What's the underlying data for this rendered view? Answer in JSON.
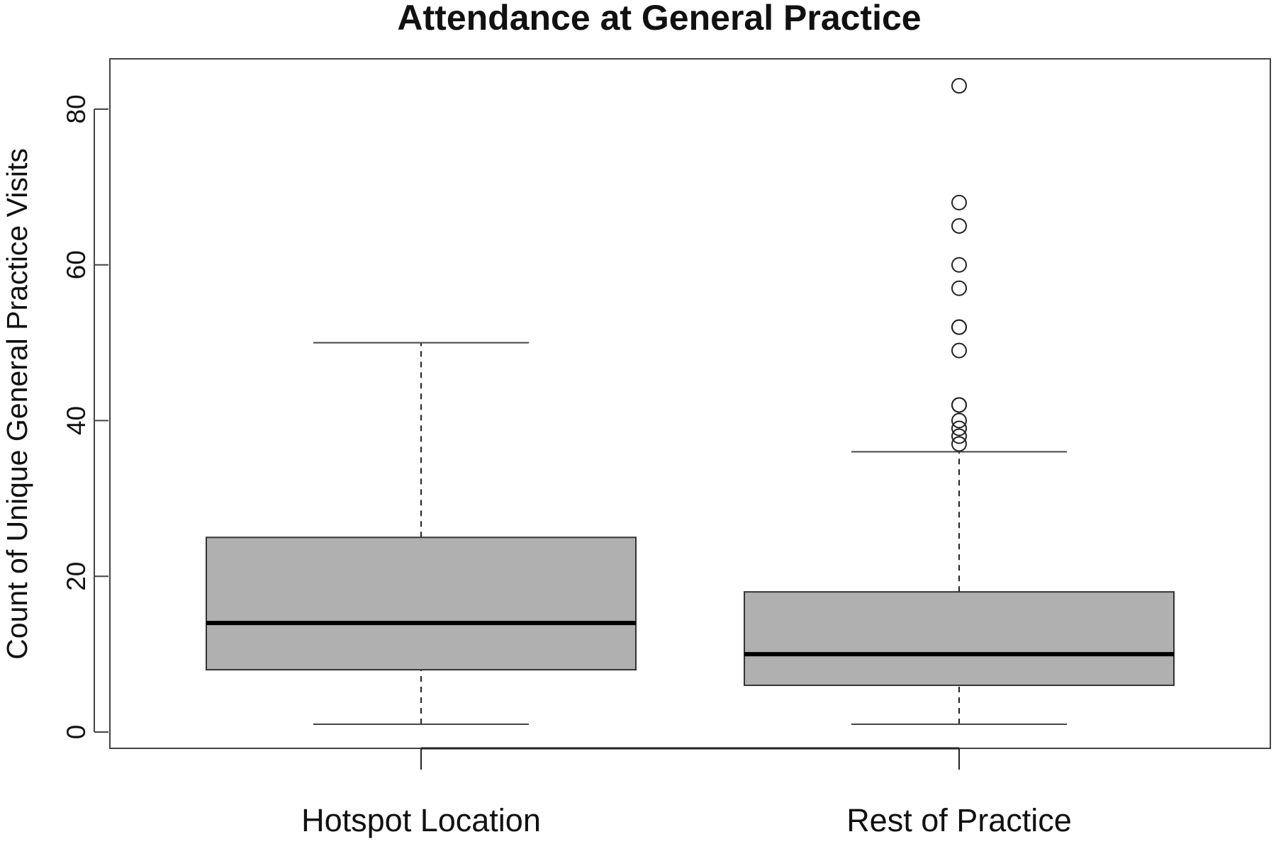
{
  "chart_data": {
    "type": "boxplot",
    "title": "Attendance at General Practice",
    "xlabel": "",
    "ylabel": "Count of Unique General Practice Visits",
    "ylim": [
      -2,
      86
    ],
    "yticks": [
      0,
      20,
      40,
      60,
      80
    ],
    "categories": [
      "Hotspot Location",
      "Rest of Practice"
    ],
    "boxes": [
      {
        "category": "Hotspot Location",
        "whisker_low": 1,
        "q1": 8,
        "median": 14,
        "q3": 25,
        "whisker_high": 50,
        "outliers": []
      },
      {
        "category": "Rest of Practice",
        "whisker_low": 1,
        "q1": 6,
        "median": 10,
        "q3": 18,
        "whisker_high": 36,
        "outliers": [
          83,
          68,
          65,
          60,
          57,
          52,
          52,
          49,
          42,
          42,
          40,
          39,
          38,
          37
        ]
      }
    ],
    "box_fill": "#b0b0b0",
    "grid": false,
    "legend": "none"
  }
}
